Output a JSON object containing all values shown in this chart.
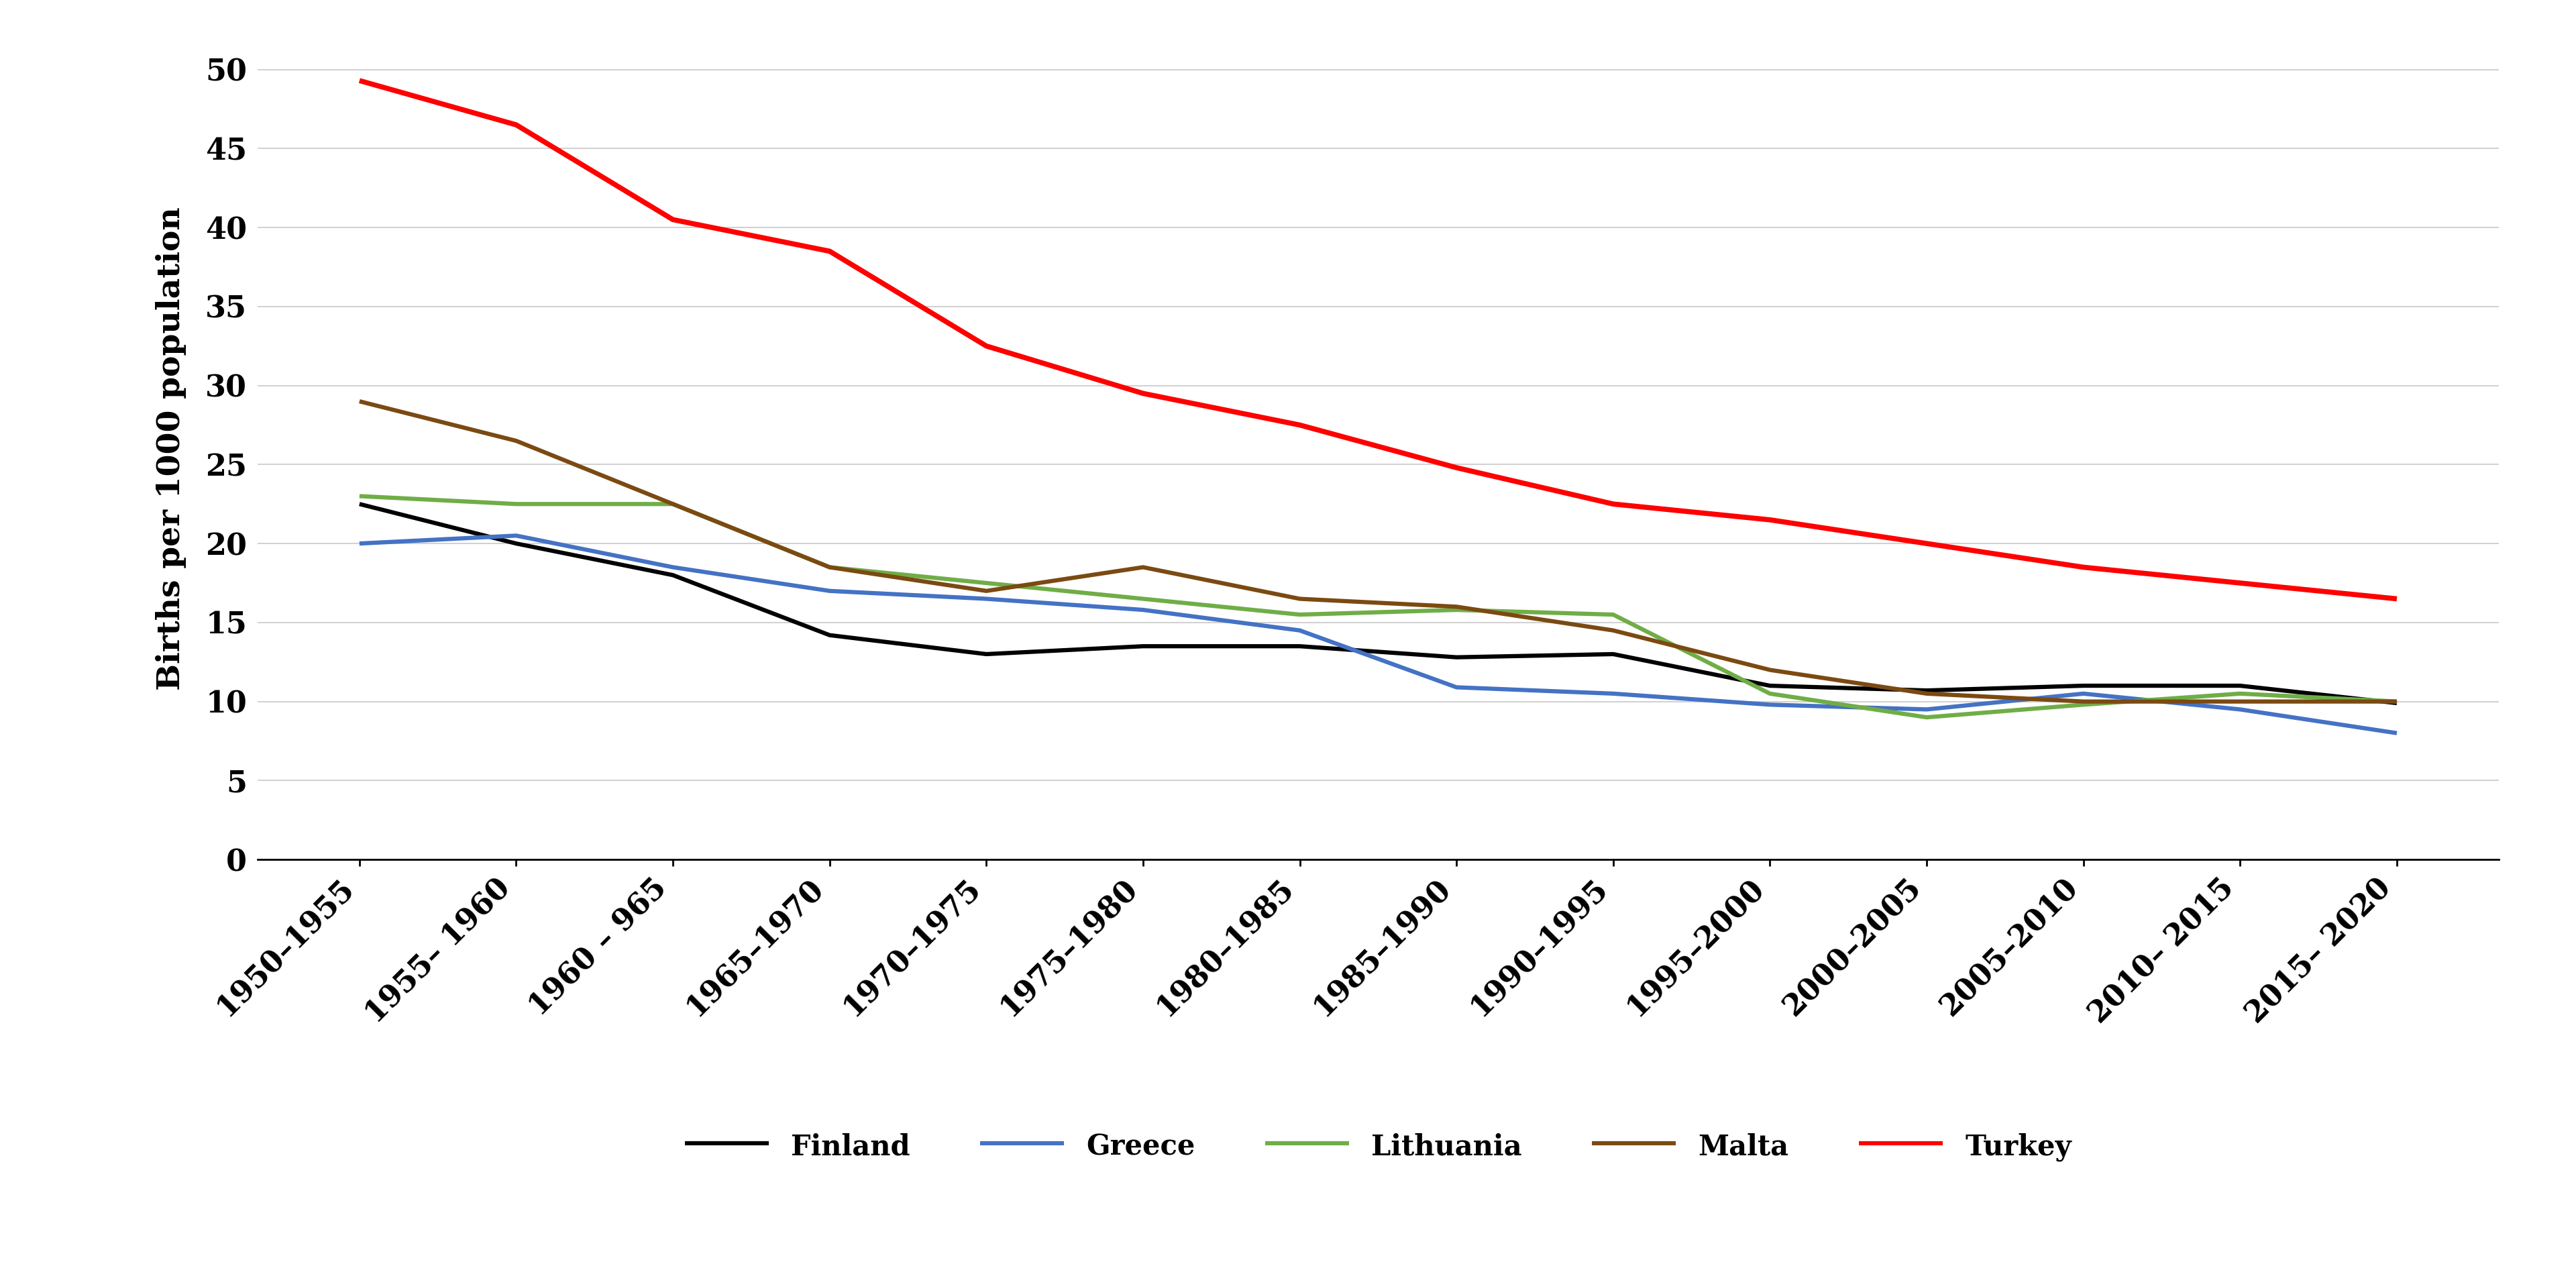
{
  "x_labels": [
    "1950–1955",
    "1955– 1960",
    "1960 – 965",
    "1965–1970",
    "1970–1975",
    "1975–1980",
    "1980–1985",
    "1985–1990",
    "1990–1995",
    "1995–2000",
    "2000–2005",
    "2005–2010",
    "2010– 2015",
    "2015– 2020"
  ],
  "series": {
    "Finland": {
      "values": [
        22.5,
        20.0,
        18.0,
        14.2,
        13.0,
        13.5,
        13.5,
        12.8,
        13.0,
        11.0,
        10.7,
        11.0,
        11.0,
        9.9
      ],
      "color": "#000000",
      "linewidth": 4.5
    },
    "Greece": {
      "values": [
        20.0,
        20.5,
        18.5,
        17.0,
        16.5,
        15.8,
        14.5,
        10.9,
        10.5,
        9.8,
        9.5,
        10.5,
        9.5,
        8.0
      ],
      "color": "#4472C4",
      "linewidth": 4.5
    },
    "Lithuania": {
      "values": [
        23.0,
        22.5,
        22.5,
        18.5,
        17.5,
        16.5,
        15.5,
        15.8,
        15.5,
        10.5,
        9.0,
        9.8,
        10.5,
        10.0
      ],
      "color": "#70AD47",
      "linewidth": 4.5
    },
    "Malta": {
      "values": [
        29.0,
        26.5,
        22.5,
        18.5,
        17.0,
        18.5,
        16.5,
        16.0,
        14.5,
        12.0,
        10.5,
        10.0,
        10.0,
        10.0
      ],
      "color": "#7B4A12",
      "linewidth": 4.5
    },
    "Turkey": {
      "values": [
        49.3,
        46.5,
        40.5,
        38.5,
        32.5,
        29.5,
        27.5,
        24.8,
        22.5,
        21.5,
        20.0,
        18.5,
        17.5,
        16.5
      ],
      "color": "#FF0000",
      "linewidth": 5.5
    }
  },
  "ylabel": "Births per 1000 population",
  "ylim": [
    0,
    52
  ],
  "yticks": [
    0,
    5,
    10,
    15,
    20,
    25,
    30,
    35,
    40,
    45,
    50
  ],
  "background_color": "#FFFFFF",
  "grid_color": "#C8C8C8",
  "legend_order": [
    "Finland",
    "Greece",
    "Lithuania",
    "Malta",
    "Turkey"
  ],
  "tick_fontsize": 32,
  "ylabel_fontsize": 34,
  "legend_fontsize": 30
}
